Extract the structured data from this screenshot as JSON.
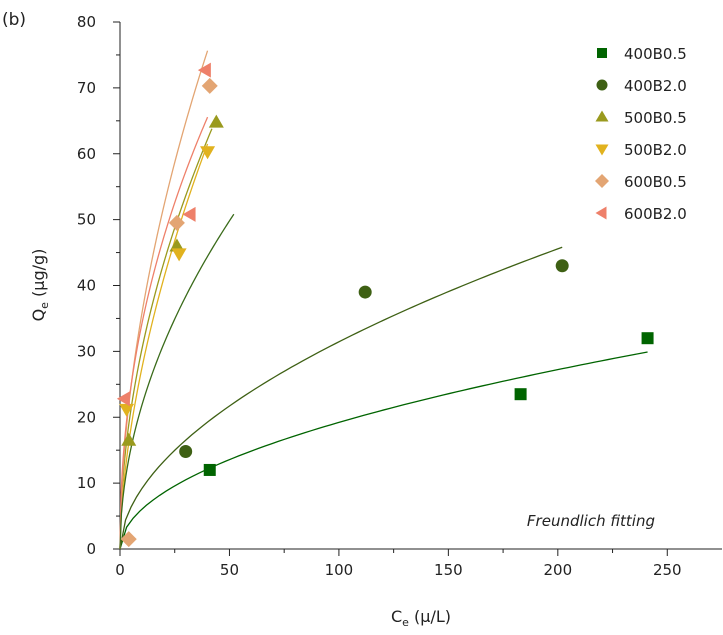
{
  "panel_label": "(b)",
  "chart_data": {
    "type": "scatter",
    "title": "",
    "xlabel": "Ce (μ/L)",
    "ylabel": "Qe (μg/g)",
    "xlabel_main": "C",
    "xlabel_sub": "e",
    "xlabel_unit": " (μ/L)",
    "ylabel_main": "Q",
    "ylabel_sub": "e",
    "ylabel_unit": " (μg/g)",
    "xlim": [
      0,
      275
    ],
    "ylim": [
      0,
      80
    ],
    "x_ticks": [
      0,
      50,
      100,
      150,
      200,
      250
    ],
    "y_ticks": [
      0,
      10,
      20,
      30,
      40,
      50,
      60,
      70,
      80
    ],
    "grid": false,
    "legend_position": "top-right",
    "annotation": "Freundlich fitting",
    "series": [
      {
        "name": "400B0.5",
        "color": "#006400",
        "marker": "square",
        "points": [
          [
            41,
            12
          ],
          [
            183,
            23.5
          ],
          [
            241,
            32
          ]
        ],
        "fit": {
          "K": 1.9,
          "n": 1.99,
          "x_range": [
            0,
            241
          ]
        }
      },
      {
        "name": "400B2.0",
        "color": "#3E6014",
        "marker": "circle",
        "points": [
          [
            30,
            14.8
          ],
          [
            112,
            39
          ],
          [
            202,
            43
          ]
        ],
        "fit": {
          "K": 2.68,
          "n": 1.87,
          "x_range": [
            0,
            202
          ]
        }
      },
      {
        "name": "500B0.5",
        "color": "#9A9A1E",
        "marker": "triangle-up",
        "points": [
          [
            4,
            16.5
          ],
          [
            26,
            46
          ],
          [
            44,
            64.8
          ]
        ],
        "fit": {
          "K": 9.2,
          "n": 1.93,
          "x_range": [
            0,
            42
          ]
        }
      },
      {
        "name": "500B2.0",
        "color": "#E1B21E",
        "marker": "triangle-down",
        "points": [
          [
            3,
            21.2
          ],
          [
            27,
            44.8
          ],
          [
            40,
            60.3
          ]
        ],
        "fit": {
          "K": 7.2,
          "n": 1.72,
          "x_range": [
            0,
            40
          ]
        }
      },
      {
        "name": "600B0.5",
        "color": "#E3A573",
        "marker": "diamond",
        "points": [
          [
            4,
            1.5
          ],
          [
            26,
            49.5
          ],
          [
            41,
            70.3
          ]
        ],
        "fit": {
          "K": 10.3,
          "n": 1.85,
          "x_range": [
            0,
            40
          ]
        }
      },
      {
        "name": "600B2.0",
        "color": "#EE806A",
        "marker": "triangle-left",
        "points": [
          [
            2,
            22.8
          ],
          [
            32,
            50.8
          ],
          [
            39,
            72.7
          ]
        ],
        "fit": {
          "K": 11.6,
          "n": 2.13,
          "x_range": [
            0,
            40
          ]
        }
      }
    ],
    "extra_curve": {
      "color": "#3A6B1A",
      "fit": {
        "K": 6.7,
        "n": 1.95,
        "x_range": [
          0,
          52
        ]
      }
    }
  }
}
